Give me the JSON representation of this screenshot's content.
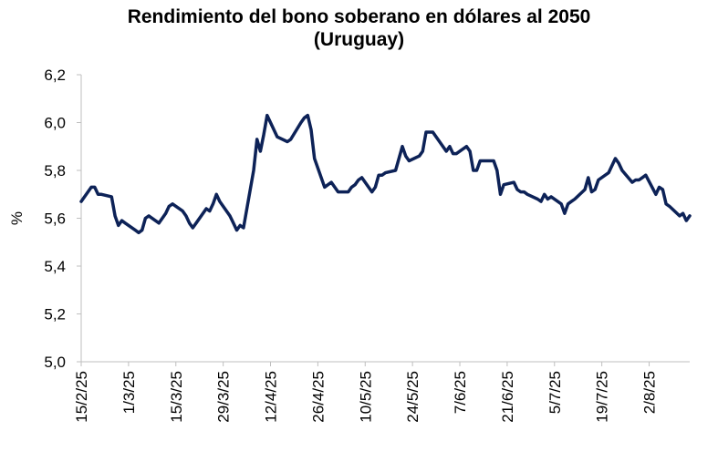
{
  "chart_data": {
    "type": "line",
    "title_lines": [
      "Rendimiento del bono soberano en dólares al 2050",
      "(Uruguay)"
    ],
    "xlabel": "",
    "ylabel": "%",
    "ylim": [
      5.0,
      6.2
    ],
    "yticks": [
      5.0,
      5.2,
      5.4,
      5.6,
      5.8,
      6.0,
      6.2
    ],
    "ytick_labels": [
      "5,0",
      "5,2",
      "5,4",
      "5,6",
      "5,8",
      "6,0",
      "6,2"
    ],
    "xlim": [
      "2025-02-15",
      "2025-08-14"
    ],
    "xticks": [
      "2025-02-15",
      "2025-03-01",
      "2025-03-15",
      "2025-03-29",
      "2025-04-12",
      "2025-04-26",
      "2025-05-10",
      "2025-05-24",
      "2025-06-07",
      "2025-06-21",
      "2025-07-05",
      "2025-07-19",
      "2025-08-02"
    ],
    "xtick_labels": [
      "15/2/25",
      "1/3/25",
      "15/3/25",
      "29/3/25",
      "12/4/25",
      "26/4/25",
      "10/5/25",
      "24/5/25",
      "7/6/25",
      "21/6/25",
      "5/7/25",
      "19/7/25",
      "2/8/25"
    ],
    "grid": false,
    "legend": "none",
    "color": "#0d2257",
    "series": [
      {
        "x": [
          "2025-02-15",
          "2025-02-17",
          "2025-02-18",
          "2025-02-19",
          "2025-02-20",
          "2025-02-21",
          "2025-02-24",
          "2025-02-25",
          "2025-02-26",
          "2025-02-27",
          "2025-02-28",
          "2025-03-03",
          "2025-03-04",
          "2025-03-05",
          "2025-03-06",
          "2025-03-07",
          "2025-03-10",
          "2025-03-11",
          "2025-03-12",
          "2025-03-13",
          "2025-03-14",
          "2025-03-17",
          "2025-03-18",
          "2025-03-19",
          "2025-03-20",
          "2025-03-21",
          "2025-03-24",
          "2025-03-25",
          "2025-03-26",
          "2025-03-27",
          "2025-03-28",
          "2025-03-31",
          "2025-04-01",
          "2025-04-02",
          "2025-04-03",
          "2025-04-04",
          "2025-04-07",
          "2025-04-08",
          "2025-04-09",
          "2025-04-10",
          "2025-04-11",
          "2025-04-14",
          "2025-04-17",
          "2025-04-18",
          "2025-04-21",
          "2025-04-22",
          "2025-04-23",
          "2025-04-24",
          "2025-04-25",
          "2025-04-28",
          "2025-04-29",
          "2025-04-30",
          "2025-05-02",
          "2025-05-05",
          "2025-05-06",
          "2025-05-07",
          "2025-05-08",
          "2025-05-09",
          "2025-05-12",
          "2025-05-13",
          "2025-05-14",
          "2025-05-15",
          "2025-05-16",
          "2025-05-19",
          "2025-05-20",
          "2025-05-21",
          "2025-05-22",
          "2025-05-23",
          "2025-05-26",
          "2025-05-27",
          "2025-05-28",
          "2025-05-29",
          "2025-05-30",
          "2025-06-02",
          "2025-06-03",
          "2025-06-04",
          "2025-06-05",
          "2025-06-06",
          "2025-06-09",
          "2025-06-10",
          "2025-06-11",
          "2025-06-12",
          "2025-06-13",
          "2025-06-16",
          "2025-06-17",
          "2025-06-18",
          "2025-06-19",
          "2025-06-20",
          "2025-06-23",
          "2025-06-24",
          "2025-06-25",
          "2025-06-26",
          "2025-06-27",
          "2025-06-30",
          "2025-07-01",
          "2025-07-02",
          "2025-07-03",
          "2025-07-04",
          "2025-07-07",
          "2025-07-08",
          "2025-07-09",
          "2025-07-10",
          "2025-07-11",
          "2025-07-14",
          "2025-07-15",
          "2025-07-16",
          "2025-07-17",
          "2025-07-18",
          "2025-07-21",
          "2025-07-22",
          "2025-07-23",
          "2025-07-24",
          "2025-07-25",
          "2025-07-28",
          "2025-07-29",
          "2025-07-30",
          "2025-07-31",
          "2025-08-01",
          "2025-08-04",
          "2025-08-05",
          "2025-08-06",
          "2025-08-07",
          "2025-08-08",
          "2025-08-11",
          "2025-08-12",
          "2025-08-13",
          "2025-08-14"
        ],
        "y": [
          5.67,
          5.71,
          5.73,
          5.73,
          5.7,
          5.7,
          5.69,
          5.61,
          5.57,
          5.59,
          5.58,
          5.55,
          5.54,
          5.55,
          5.6,
          5.61,
          5.58,
          5.6,
          5.62,
          5.65,
          5.66,
          5.63,
          5.61,
          5.58,
          5.56,
          5.58,
          5.64,
          5.63,
          5.66,
          5.7,
          5.67,
          5.61,
          5.58,
          5.55,
          5.57,
          5.56,
          5.8,
          5.93,
          5.88,
          5.95,
          6.03,
          5.94,
          5.92,
          5.93,
          6.0,
          6.02,
          6.03,
          5.97,
          5.85,
          5.73,
          5.74,
          5.75,
          5.71,
          5.71,
          5.73,
          5.74,
          5.76,
          5.77,
          5.71,
          5.73,
          5.78,
          5.78,
          5.79,
          5.8,
          5.85,
          5.9,
          5.86,
          5.84,
          5.86,
          5.88,
          5.96,
          5.96,
          5.96,
          5.9,
          5.88,
          5.9,
          5.87,
          5.87,
          5.9,
          5.88,
          5.8,
          5.8,
          5.84,
          5.84,
          5.84,
          5.8,
          5.7,
          5.74,
          5.75,
          5.72,
          5.71,
          5.71,
          5.7,
          5.68,
          5.67,
          5.7,
          5.68,
          5.69,
          5.66,
          5.62,
          5.66,
          5.67,
          5.68,
          5.72,
          5.77,
          5.71,
          5.72,
          5.76,
          5.79,
          5.82,
          5.85,
          5.83,
          5.8,
          5.75,
          5.76,
          5.76,
          5.77,
          5.78,
          5.7,
          5.73,
          5.72,
          5.66,
          5.65,
          5.61,
          5.62,
          5.59,
          5.61
        ]
      }
    ]
  }
}
